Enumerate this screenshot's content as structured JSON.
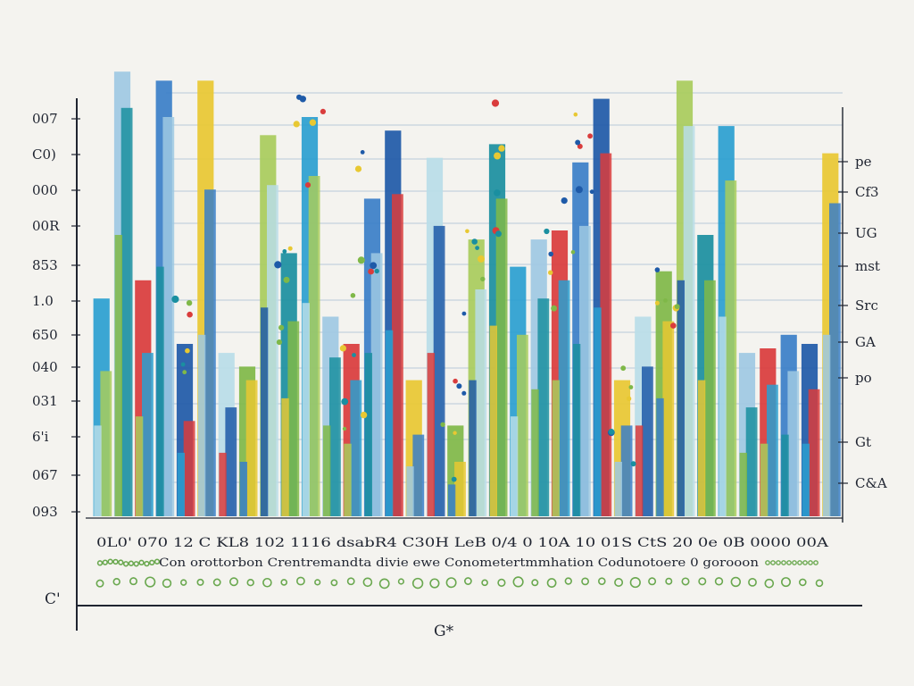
{
  "chart_data": {
    "type": "bar",
    "title": "",
    "xlabel": "G*",
    "corner_label": "C'",
    "ylabel_left": [
      "007",
      "C0)",
      "000",
      "00R",
      "853",
      "1.0",
      "650",
      "040",
      "031",
      "6'i",
      "067",
      "093"
    ],
    "ylabel_right": [
      "pe",
      "Cf3",
      "UG",
      "mst",
      "Src",
      "GA",
      "po",
      "Gt",
      "C&A"
    ],
    "x_tick_text": "0L0' 070  12 C KL8 102 1116 dsabR4  C30H   LeB  0/4 0 10A 10  01S  CtS 20 0e  0B 0000  00A",
    "footer_text": "Con orottorbon Crentremandta divie ewe Conometertmmhation Codunotoere 0 gorooon",
    "ylim": [
      0,
      100
    ],
    "colors": [
      "#2a9fd0",
      "#7fb848",
      "#1e5aa8",
      "#9ec9e3",
      "#a8cc5c",
      "#e8c832",
      "#d93c3c",
      "#1a8fa0",
      "#b8dde8",
      "#3a7fc8"
    ],
    "series": [
      {
        "name": "",
        "values": [
          48,
          98,
          52,
          96,
          38,
          96,
          36,
          33,
          84,
          58,
          88,
          44,
          38,
          70,
          85,
          30,
          79,
          20,
          61,
          82,
          55,
          61,
          63,
          78,
          92,
          30,
          44,
          54,
          96,
          62,
          86,
          36,
          37,
          40,
          38,
          80
        ]
      },
      {
        "name": "",
        "values": [
          32,
          90,
          36,
          88,
          21,
          72,
          24,
          30,
          73,
          43,
          75,
          35,
          30,
          58,
          71,
          18,
          64,
          12,
          50,
          70,
          40,
          48,
          52,
          64,
          80,
          20,
          33,
          43,
          86,
          52,
          74,
          24,
          29,
          32,
          28,
          69
        ]
      },
      {
        "name": "",
        "values": [
          20,
          62,
          22,
          55,
          14,
          40,
          14,
          12,
          46,
          26,
          47,
          20,
          16,
          36,
          41,
          11,
          36,
          7,
          30,
          42,
          22,
          28,
          30,
          38,
          46,
          12,
          20,
          26,
          52,
          30,
          44,
          14,
          16,
          18,
          16,
          40
        ]
      }
    ],
    "grid": true,
    "legend": "none"
  }
}
